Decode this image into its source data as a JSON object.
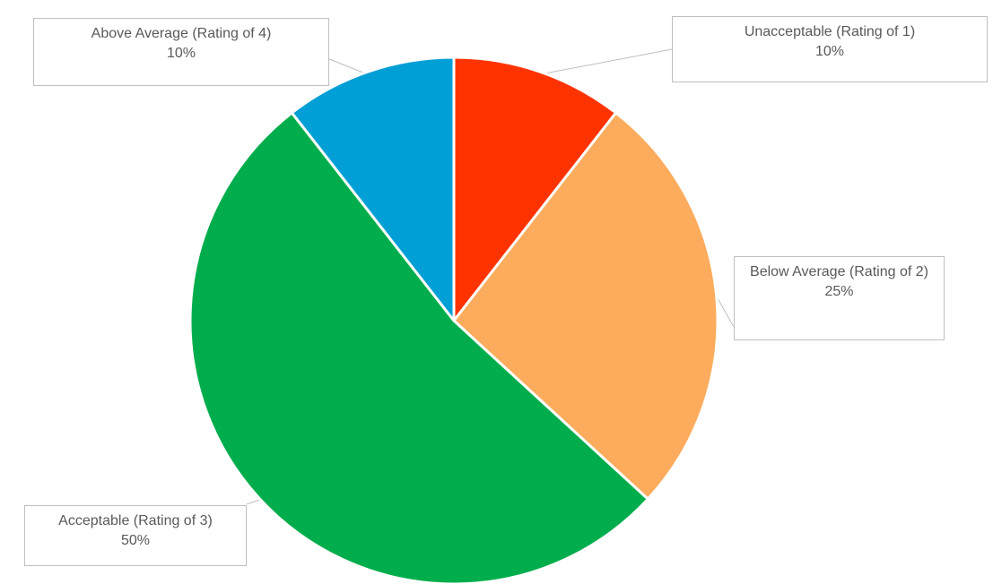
{
  "chart_data": {
    "type": "pie",
    "title": "",
    "start_angle_deg": 0,
    "direction": "clockwise",
    "slices": [
      {
        "label": "Unacceptable (Rating of 1)",
        "value": 10,
        "percent_label": "10%",
        "color": "#FF3300"
      },
      {
        "label": "Below Average (Rating of 2)",
        "value": 25,
        "percent_label": "25%",
        "color": "#FCAC5C"
      },
      {
        "label": "Acceptable (Rating of 3)",
        "value": 50,
        "percent_label": "50%",
        "color": "#00AD4C"
      },
      {
        "label": "Above Average (Rating of 4)",
        "value": 10,
        "percent_label": "10%",
        "color": "#009FD6"
      }
    ]
  }
}
